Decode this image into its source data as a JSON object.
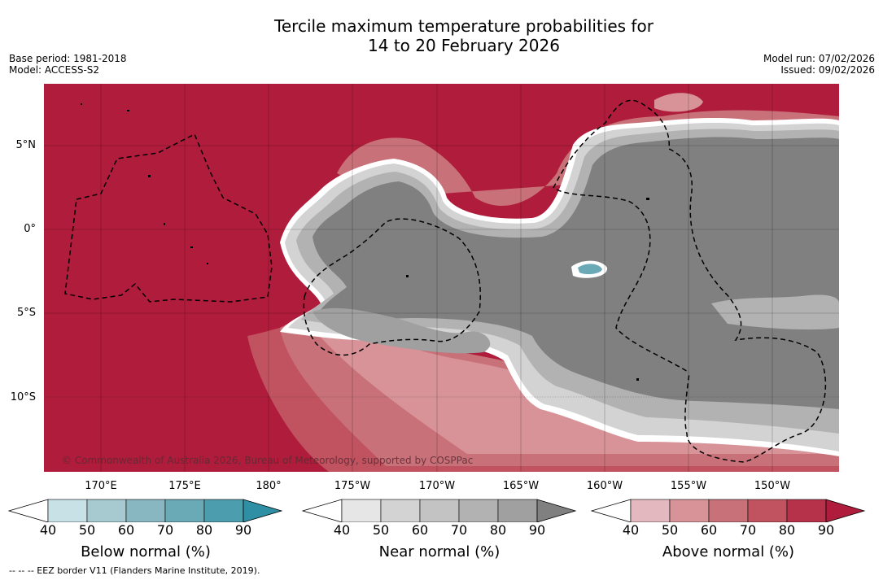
{
  "title_line1": "Tercile maximum temperature probabilities for",
  "title_line2": "14 to 20 February 2026",
  "meta": {
    "base_period": "Base period: 1981-2018",
    "model": "Model: ACCESS-S2",
    "model_run": "Model run: 07/02/2026",
    "issued": "Issued: 09/02/2026"
  },
  "copyright": "© Commonwealth of Australia 2026, Bureau of Meteorology, supported by COSPPac",
  "lat_labels": [
    "5°N",
    "0°",
    "5°S",
    "10°S"
  ],
  "lon_labels": [
    "170°E",
    "175°E",
    "180°",
    "175°W",
    "170°W",
    "165°W",
    "160°W",
    "155°W",
    "150°W"
  ],
  "colorbars": [
    {
      "title": "Below normal (%)",
      "ticks": [
        "40",
        "50",
        "60",
        "70",
        "80",
        "90"
      ],
      "colors": [
        "#ffffff",
        "#c8e1e7",
        "#a7c9d0",
        "#88b7c2",
        "#6aa9b6",
        "#4c9eae",
        "#2f8fa5"
      ]
    },
    {
      "title": "Near normal (%)",
      "ticks": [
        "40",
        "50",
        "60",
        "70",
        "80",
        "90"
      ],
      "colors": [
        "#ffffff",
        "#e6e6e6",
        "#d3d3d3",
        "#c3c3c3",
        "#b2b2b2",
        "#a0a0a0",
        "#808080"
      ]
    },
    {
      "title": "Above normal (%)",
      "ticks": [
        "40",
        "50",
        "60",
        "70",
        "80",
        "90"
      ],
      "colors": [
        "#ffffff",
        "#e3b8be",
        "#d79398",
        "#c97179",
        "#c0535f",
        "#b6314a",
        "#b01c3b"
      ]
    }
  ],
  "footnote": "--  --  -- EEZ border V11 (Flanders Marine Institute, 2019)."
}
